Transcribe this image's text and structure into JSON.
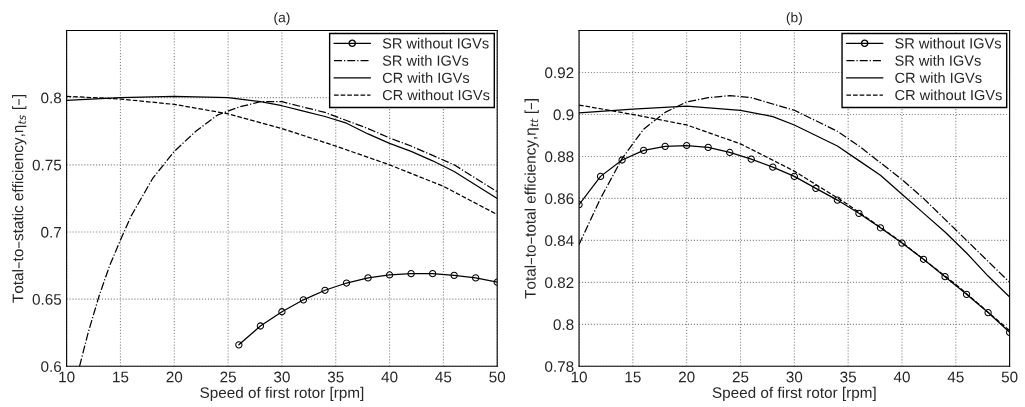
{
  "chart_data": [
    {
      "type": "line",
      "title": "(a)",
      "xlabel": "Speed of first rotor [rpm]",
      "ylabel": "Total–to–static efficiency,η$_{ts}$ [–]",
      "xlim": [
        10,
        50
      ],
      "xticks": [
        10,
        15,
        20,
        25,
        30,
        35,
        40,
        45,
        50
      ],
      "ylim": [
        0.6,
        0.85
      ],
      "yticks": [
        0.6,
        0.65,
        0.7,
        0.75,
        0.8
      ],
      "grid": true,
      "legend": "top right",
      "series": [
        {
          "name": "SR without IGVs",
          "color": "#000000",
          "marker": "circle",
          "line_style": "solid",
          "x": [
            26,
            28,
            30,
            32,
            34,
            36,
            38,
            40,
            42,
            44,
            46,
            48,
            50
          ],
          "values": [
            0.616,
            0.63,
            0.6406,
            0.6495,
            0.6566,
            0.662,
            0.6658,
            0.668,
            0.669,
            0.669,
            0.6677,
            0.6658,
            0.6626
          ]
        },
        {
          "name": "SR with IGVs",
          "color": "#000000",
          "marker": "none",
          "line_style": "dashdot",
          "x": [
            11.2,
            12,
            13,
            14,
            15,
            16,
            18,
            20,
            22,
            24,
            26,
            28,
            30,
            32,
            34,
            36,
            38,
            40,
            42,
            44,
            46,
            48,
            50
          ],
          "values": [
            0.6,
            0.625,
            0.652,
            0.675,
            0.694,
            0.712,
            0.74,
            0.76,
            0.775,
            0.787,
            0.793,
            0.797,
            0.797,
            0.793,
            0.789,
            0.783,
            0.777,
            0.77,
            0.764,
            0.757,
            0.75,
            0.74,
            0.73
          ]
        },
        {
          "name": "CR with IGVs",
          "color": "#000000",
          "marker": "none",
          "line_style": "solid",
          "x": [
            10,
            15,
            20,
            25,
            28,
            30,
            32,
            34,
            36,
            38,
            40,
            42,
            44,
            46,
            48,
            50
          ],
          "values": [
            0.798,
            0.8,
            0.801,
            0.8,
            0.797,
            0.794,
            0.79,
            0.786,
            0.781,
            0.773,
            0.766,
            0.76,
            0.753,
            0.745,
            0.735,
            0.725
          ]
        },
        {
          "name": "CR without IGVs",
          "color": "#000000",
          "marker": "none",
          "line_style": "dashed",
          "x": [
            10,
            15,
            20,
            25,
            30,
            35,
            40,
            45,
            50
          ],
          "values": [
            0.801,
            0.799,
            0.795,
            0.788,
            0.777,
            0.764,
            0.75,
            0.734,
            0.713
          ]
        }
      ]
    },
    {
      "type": "line",
      "title": "(b)",
      "xlabel": "Speed of first rotor [rpm]",
      "ylabel": "Total–to–total efficiency,η$_{tt}$ [–]",
      "xlim": [
        10,
        50
      ],
      "xticks": [
        10,
        15,
        20,
        25,
        30,
        35,
        40,
        45,
        50
      ],
      "ylim": [
        0.78,
        0.94
      ],
      "yticks": [
        0.78,
        0.8,
        0.82,
        0.84,
        0.86,
        0.88,
        0.9,
        0.92
      ],
      "grid": true,
      "legend": "top right",
      "series": [
        {
          "name": "SR without IGVs",
          "color": "#000000",
          "marker": "circle",
          "line_style": "solid",
          "x": [
            10,
            12,
            14,
            16,
            18,
            20,
            22,
            24,
            26,
            28,
            30,
            32,
            34,
            36,
            38,
            40,
            42,
            44,
            46,
            48,
            50
          ],
          "values": [
            0.857,
            0.8705,
            0.8783,
            0.8829,
            0.8848,
            0.8852,
            0.8843,
            0.8819,
            0.8787,
            0.8749,
            0.8705,
            0.8648,
            0.8592,
            0.8529,
            0.846,
            0.8387,
            0.831,
            0.8227,
            0.8143,
            0.8056,
            0.7962
          ]
        },
        {
          "name": "SR with IGVs",
          "color": "#000000",
          "marker": "none",
          "line_style": "dashdot",
          "x": [
            10,
            12,
            14,
            16,
            18,
            20,
            22,
            24,
            26,
            28,
            30,
            32,
            34,
            36,
            38,
            40,
            42,
            44,
            46,
            48,
            50
          ],
          "values": [
            0.838,
            0.86,
            0.879,
            0.893,
            0.901,
            0.906,
            0.908,
            0.909,
            0.908,
            0.905,
            0.902,
            0.897,
            0.892,
            0.885,
            0.877,
            0.869,
            0.86,
            0.85,
            0.84,
            0.83,
            0.82
          ]
        },
        {
          "name": "CR with IGVs",
          "color": "#000000",
          "marker": "none",
          "line_style": "solid",
          "x": [
            10,
            15,
            20,
            25,
            28,
            30,
            32,
            34,
            36,
            38,
            40,
            42,
            44,
            46,
            48,
            50
          ],
          "values": [
            0.9008,
            0.9025,
            0.904,
            0.902,
            0.899,
            0.895,
            0.89,
            0.885,
            0.878,
            0.871,
            0.862,
            0.853,
            0.844,
            0.834,
            0.823,
            0.813
          ]
        },
        {
          "name": "CR without IGVs",
          "color": "#000000",
          "marker": "none",
          "line_style": "dashed",
          "x": [
            10,
            15,
            20,
            25,
            30,
            35,
            40,
            45,
            50
          ],
          "values": [
            0.9045,
            0.9,
            0.895,
            0.886,
            0.873,
            0.857,
            0.839,
            0.819,
            0.797
          ]
        }
      ]
    }
  ]
}
